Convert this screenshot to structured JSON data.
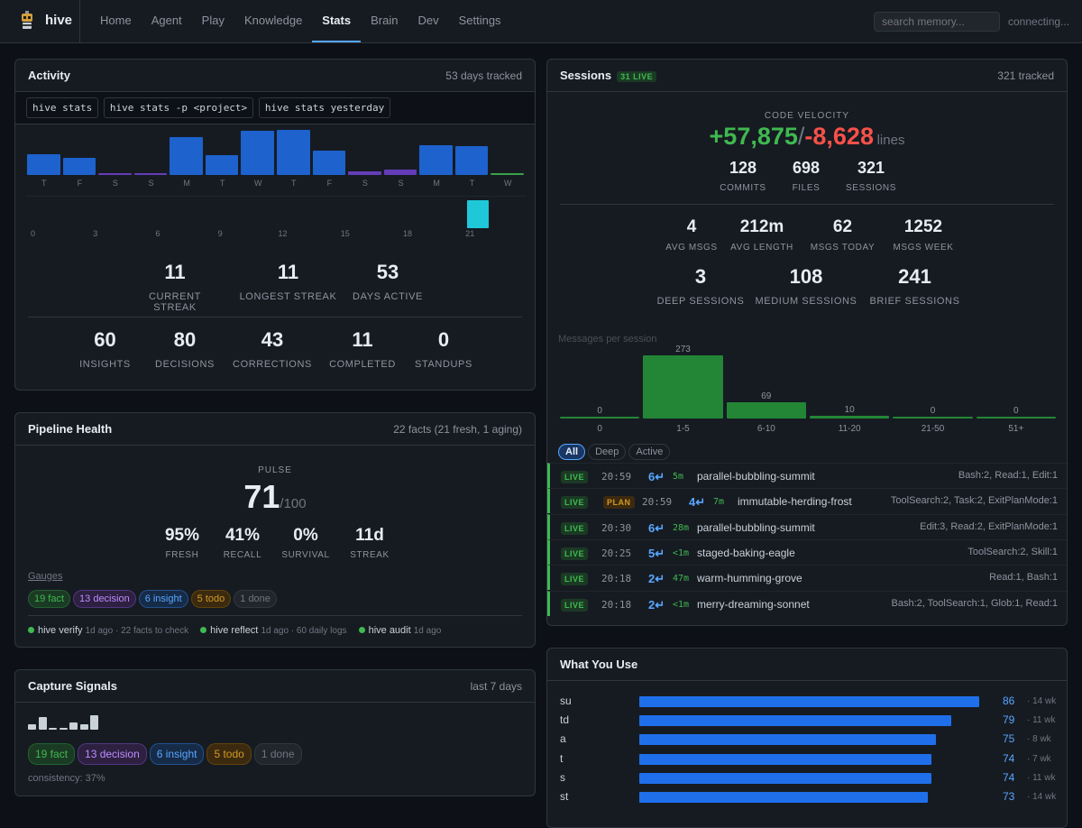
{
  "app": {
    "name": "hive",
    "search_placeholder": "search memory...",
    "status": "connecting..."
  },
  "nav": {
    "tabs": [
      "Home",
      "Agent",
      "Play",
      "Knowledge",
      "Stats",
      "Brain",
      "Dev",
      "Settings"
    ],
    "active": "Stats"
  },
  "activity": {
    "title": "Activity",
    "meta": "53 days tracked",
    "commands": [
      "hive stats",
      "hive stats -p <project>",
      "hive stats yesterday"
    ],
    "daily": {
      "labels": [
        "T",
        "F",
        "S",
        "S",
        "M",
        "T",
        "W",
        "T",
        "F",
        "S",
        "S",
        "M",
        "T",
        "W"
      ],
      "values": [
        22,
        18,
        2,
        2,
        40,
        21,
        47,
        48,
        26,
        4,
        6,
        32,
        31,
        2
      ]
    },
    "hourly": {
      "tick_labels": [
        "0",
        "3",
        "6",
        "9",
        "12",
        "15",
        "18",
        "21"
      ],
      "peak_hour": 21
    },
    "streaks": [
      {
        "v": "11",
        "l": "Current Streak"
      },
      {
        "v": "11",
        "l": "Longest Streak"
      },
      {
        "v": "53",
        "l": "Days Active"
      }
    ],
    "counts": [
      {
        "v": "60",
        "l": "Insights"
      },
      {
        "v": "80",
        "l": "Decisions"
      },
      {
        "v": "43",
        "l": "Corrections"
      },
      {
        "v": "11",
        "l": "Completed"
      },
      {
        "v": "0",
        "l": "Standups"
      }
    ]
  },
  "pipeline": {
    "title": "Pipeline Health",
    "meta": "22 facts (21 fresh, 1 aging)",
    "pulse_label": "PULSE",
    "pulse": "71",
    "pulse_max": "/100",
    "metrics": [
      {
        "v": "95%",
        "l": "Fresh"
      },
      {
        "v": "41%",
        "l": "Recall"
      },
      {
        "v": "0%",
        "l": "Survival"
      },
      {
        "v": "11d",
        "l": "Streak"
      }
    ],
    "gauges_label": "Gauges",
    "tags": [
      "19 fact",
      "13 decision",
      "6 insight",
      "5 todo",
      "1 done"
    ],
    "checks": [
      {
        "name": "hive verify",
        "detail": "1d ago · 22 facts to check"
      },
      {
        "name": "hive reflect",
        "detail": "1d ago · 60 daily logs"
      },
      {
        "name": "hive audit",
        "detail": "1d ago"
      }
    ]
  },
  "capture": {
    "title": "Capture Signals",
    "meta": "last 7 days",
    "spark": [
      0.4,
      0.85,
      0.12,
      0.12,
      0.5,
      0.35,
      1.0
    ],
    "tags": [
      "19 fact",
      "13 decision",
      "6 insight",
      "5 todo",
      "1 done"
    ],
    "consistency": "consistency: 37%"
  },
  "sessions": {
    "title": "Sessions",
    "live_badge": "31 LIVE",
    "meta": "321 tracked",
    "velocity_label": "CODE VELOCITY",
    "added": "+57,875",
    "sep": "/",
    "removed": "-8,628",
    "unit": "lines",
    "top": [
      {
        "v": "128",
        "l": "Commits"
      },
      {
        "v": "698",
        "l": "Files"
      },
      {
        "v": "321",
        "l": "Sessions"
      }
    ],
    "mid": [
      {
        "v": "4",
        "l": "Avg Msgs"
      },
      {
        "v": "212m",
        "l": "Avg Length"
      },
      {
        "v": "62",
        "l": "Msgs Today"
      },
      {
        "v": "1252",
        "l": "Msgs Week"
      }
    ],
    "depth": [
      {
        "v": "3",
        "l": "Deep Sessions"
      },
      {
        "v": "108",
        "l": "Medium Sessions"
      },
      {
        "v": "241",
        "l": "Brief Sessions"
      }
    ],
    "filters": [
      "All",
      "Deep",
      "Active"
    ],
    "rows": [
      {
        "status": "LIVE",
        "plan": "",
        "time": "20:59",
        "msgs": "6↵",
        "dur": "5m",
        "name": "parallel-bubbling-summit",
        "tools": "Bash:2, Read:1, Edit:1"
      },
      {
        "status": "LIVE",
        "plan": "PLAN",
        "time": "20:59",
        "msgs": "4↵",
        "dur": "7m",
        "name": "immutable-herding-frost",
        "tools": "ToolSearch:2, Task:2, ExitPlanMode:1"
      },
      {
        "status": "LIVE",
        "plan": "",
        "time": "20:30",
        "msgs": "6↵",
        "dur": "28m",
        "name": "parallel-bubbling-summit",
        "tools": "Edit:3, Read:2, ExitPlanMode:1"
      },
      {
        "status": "LIVE",
        "plan": "",
        "time": "20:25",
        "msgs": "5↵",
        "dur": "<1m",
        "name": "staged-baking-eagle",
        "tools": "ToolSearch:2, Skill:1"
      },
      {
        "status": "LIVE",
        "plan": "",
        "time": "20:18",
        "msgs": "2↵",
        "dur": "47m",
        "name": "warm-humming-grove",
        "tools": "Read:1, Bash:1"
      },
      {
        "status": "LIVE",
        "plan": "",
        "time": "20:18",
        "msgs": "2↵",
        "dur": "<1m",
        "name": "merry-dreaming-sonnet",
        "tools": "Bash:2, ToolSearch:1, Glob:1, Read:1"
      }
    ]
  },
  "chart_data": {
    "type": "bar",
    "title": "Messages per session",
    "categories": [
      "0",
      "1-5",
      "6-10",
      "11-20",
      "21-50",
      "51+"
    ],
    "values": [
      0,
      273,
      69,
      10,
      0,
      0
    ],
    "ylim": [
      0,
      273
    ]
  },
  "usage": {
    "title": "What You Use",
    "rows": [
      {
        "cmd": "su",
        "count": 86,
        "label": "86",
        "weeks": "· 14 wk"
      },
      {
        "cmd": "td",
        "count": 79,
        "label": "79",
        "weeks": "· 11 wk"
      },
      {
        "cmd": "a",
        "count": 75,
        "label": "75",
        "weeks": "· 8 wk"
      },
      {
        "cmd": "t",
        "count": 74,
        "label": "74",
        "weeks": "· 7 wk"
      },
      {
        "cmd": "s",
        "count": 74,
        "label": "74",
        "weeks": "· 11 wk"
      },
      {
        "cmd": "st",
        "count": 73,
        "label": "73",
        "weeks": "· 14 wk"
      }
    ]
  },
  "colors": {
    "accent": "#58a6ff",
    "green": "#3fb950",
    "red": "#f85149",
    "bar_blue": "#1f6feb",
    "bar_purple": "#6e40c9",
    "bar_green": "#238636",
    "cyan": "#1ec8d8"
  }
}
